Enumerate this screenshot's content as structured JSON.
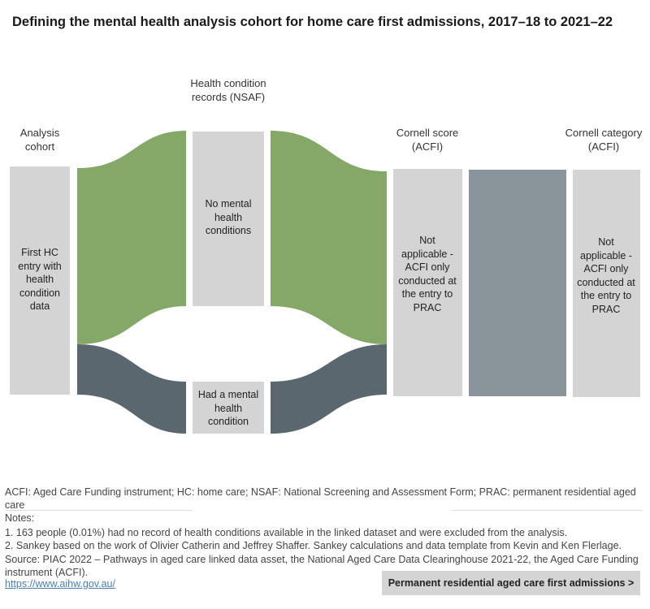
{
  "title": "Defining the mental health analysis cohort for home care first admissions, 2017–18 to 2021–22",
  "columns": {
    "analysis_cohort": "Analysis cohort",
    "health_condition": "Health condition records (NSAF)",
    "cornell_score": "Cornell score (ACFI)",
    "cornell_category": "Cornell category (ACFI)"
  },
  "nodes": {
    "first_hc": "First HC entry with health condition data",
    "no_mental": "No mental health conditions",
    "had_mental": "Had a mental health condition",
    "score_na": "Not applicable - ACFI only conducted at the entry to PRAC",
    "category_na": "Not applicable - ACFI only conducted at the entry to PRAC"
  },
  "colors": {
    "node_grey": "#d4d4d4",
    "no_mental_flow": "#84a868",
    "had_mental_flow": "#5a676e",
    "combined_flow": "#89959a"
  },
  "footer": {
    "abbrev": "ACFI: Aged Care Funding instrument; HC: home care; NSAF: National Screening and Assessment Form; PRAC: permanent residential aged care",
    "notes_heading": "Notes:",
    "note1": "1. 163 people (0.01%) had no record of health conditions available in the linked dataset and were excluded from the analysis.",
    "note2": "2. Sankey based on the work of Olivier Catherin and Jeffrey Shaffer. Sankey calculations and data template from Kevin and Ken Flerlage.",
    "source": "Source: PIAC 2022 – Pathways in aged care linked data asset,  the National Aged Care Data Clearinghouse 2021-22,  the Aged Care Funding instrument (ACFI).",
    "link": "https://www.aihw.gov.au/",
    "nav_button": "Permanent residential aged care first admissions >"
  }
}
